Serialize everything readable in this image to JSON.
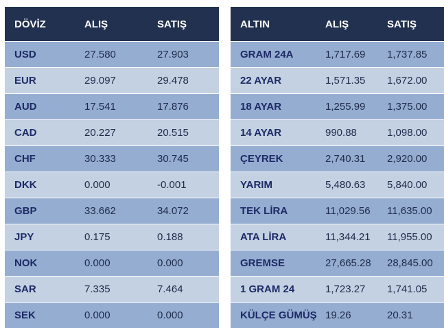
{
  "doviz": {
    "headers": {
      "name": "DÖVİZ",
      "buy": "ALIŞ",
      "sell": "SATIŞ"
    },
    "rows": [
      {
        "code": "USD",
        "buy": "27.580",
        "sell": "27.903"
      },
      {
        "code": "EUR",
        "buy": "29.097",
        "sell": "29.478"
      },
      {
        "code": "AUD",
        "buy": "17.541",
        "sell": "17.876"
      },
      {
        "code": "CAD",
        "buy": "20.227",
        "sell": "20.515"
      },
      {
        "code": "CHF",
        "buy": "30.333",
        "sell": "30.745"
      },
      {
        "code": "DKK",
        "buy": "0.000",
        "sell": "-0.001"
      },
      {
        "code": "GBP",
        "buy": "33.662",
        "sell": "34.072"
      },
      {
        "code": "JPY",
        "buy": "0.175",
        "sell": "0.188"
      },
      {
        "code": "NOK",
        "buy": "0.000",
        "sell": "0.000"
      },
      {
        "code": "SAR",
        "buy": "7.335",
        "sell": "7.464"
      },
      {
        "code": "SEK",
        "buy": "0.000",
        "sell": "0.000"
      }
    ]
  },
  "altin": {
    "headers": {
      "name": "ALTIN",
      "buy": "ALIŞ",
      "sell": "SATIŞ"
    },
    "rows": [
      {
        "code": "GRAM 24A",
        "buy": "1,717.69",
        "sell": "1,737.85"
      },
      {
        "code": "22 AYAR",
        "buy": "1,571.35",
        "sell": "1,672.00"
      },
      {
        "code": "18 AYAR",
        "buy": "1,255.99",
        "sell": "1,375.00"
      },
      {
        "code": "14 AYAR",
        "buy": "990.88",
        "sell": "1,098.00"
      },
      {
        "code": "ÇEYREK",
        "buy": "2,740.31",
        "sell": "2,920.00"
      },
      {
        "code": "YARIM",
        "buy": "5,480.63",
        "sell": "5,840.00"
      },
      {
        "code": "TEK LİRA",
        "buy": "11,029.56",
        "sell": "11,635.00"
      },
      {
        "code": "ATA LİRA",
        "buy": "11,344.21",
        "sell": "11,955.00"
      },
      {
        "code": "GREMSE",
        "buy": "27,665.28",
        "sell": "28,845.00"
      },
      {
        "code": "1 GRAM 24",
        "buy": "1,723.27",
        "sell": "1,741.05"
      },
      {
        "code": "KÜLÇE GÜMÜŞ",
        "buy": "19.26",
        "sell": "20.31"
      }
    ]
  },
  "colors": {
    "header_bg": "#22314f",
    "row_odd": "#95add1",
    "row_even": "#c3d1e2",
    "code_text": "#1d2a66"
  }
}
